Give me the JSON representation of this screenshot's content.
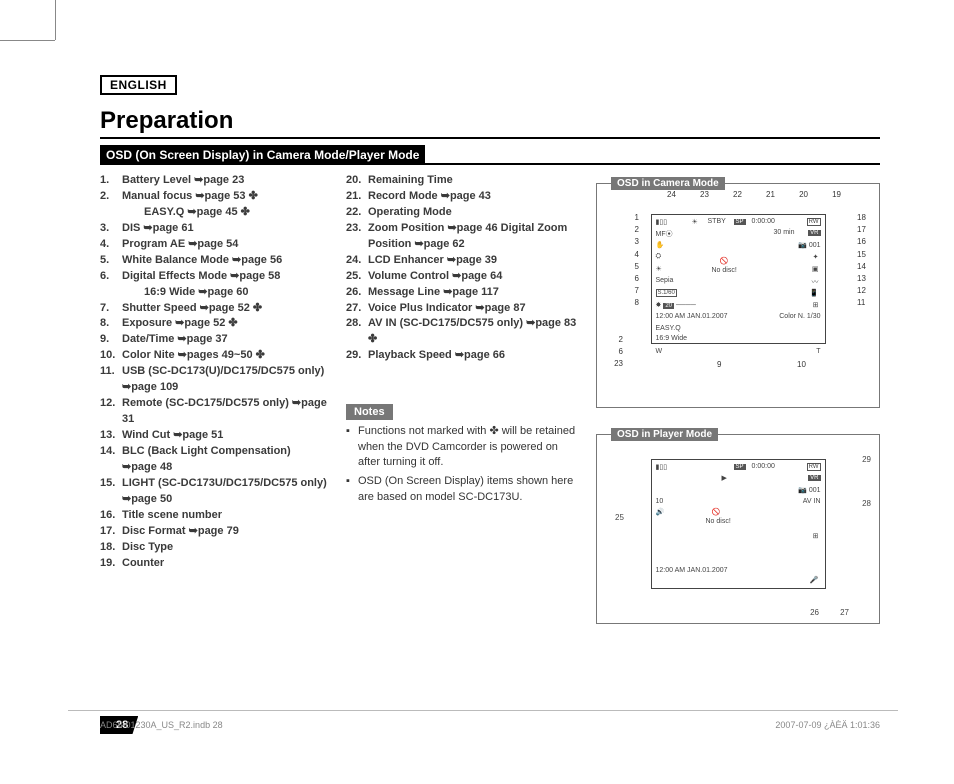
{
  "doc": {
    "language_label": "ENGLISH",
    "title": "Preparation",
    "section_heading": "OSD (On Screen Display) in Camera Mode/Player Mode",
    "page_number": "28",
    "footer_left": "AD68-01230A_US_R2.indb   28",
    "footer_right": "2007-07-09   ¿ÀÈÄ 1:01:36"
  },
  "list_a": [
    {
      "n": "1.",
      "t": "Battery Level ➥page 23"
    },
    {
      "n": "2.",
      "t": "Manual focus ➥page 53 ✤"
    },
    {
      "n": "",
      "t": "EASY.Q ➥page 45 ✤",
      "sub": true
    },
    {
      "n": "3.",
      "t": "DIS ➥page 61"
    },
    {
      "n": "4.",
      "t": "Program AE ➥page 54"
    },
    {
      "n": "5.",
      "t": "White Balance Mode ➥page 56"
    },
    {
      "n": "6.",
      "t": "Digital Effects Mode ➥page 58"
    },
    {
      "n": "",
      "t": "16:9 Wide ➥page 60",
      "sub": true
    },
    {
      "n": "7.",
      "t": "Shutter Speed ➥page 52 ✤"
    },
    {
      "n": "8.",
      "t": "Exposure ➥page 52 ✤"
    },
    {
      "n": "9.",
      "t": "Date/Time ➥page 37"
    },
    {
      "n": "10.",
      "t": "Color Nite ➥pages 49~50 ✤"
    },
    {
      "n": "11.",
      "t": "USB (SC-DC173(U)/DC175/DC575 only) ➥page 109"
    },
    {
      "n": "12.",
      "t": "Remote (SC-DC175/DC575 only) ➥page 31"
    },
    {
      "n": "13.",
      "t": "Wind Cut ➥page 51"
    },
    {
      "n": "14.",
      "t": "BLC (Back Light Compensation) ➥page 48"
    },
    {
      "n": "15.",
      "t": "LIGHT (SC-DC173U/DC175/DC575 only) ➥page 50"
    },
    {
      "n": "16.",
      "t": "Title scene number"
    },
    {
      "n": "17.",
      "t": "Disc Format ➥page 79"
    },
    {
      "n": "18.",
      "t": "Disc Type"
    },
    {
      "n": "19.",
      "t": "Counter"
    }
  ],
  "list_b": [
    {
      "n": "20.",
      "t": "Remaining Time"
    },
    {
      "n": "21.",
      "t": "Record Mode ➥page 43"
    },
    {
      "n": "22.",
      "t": "Operating Mode"
    },
    {
      "n": "23.",
      "t": "Zoom Position ➥page 46 Digital Zoom Position ➥page 62"
    },
    {
      "n": "24.",
      "t": "LCD Enhancer ➥page 39"
    },
    {
      "n": "25.",
      "t": "Volume Control ➥page 64"
    },
    {
      "n": "26.",
      "t": "Message Line ➥page 117"
    },
    {
      "n": "27.",
      "t": "Voice Plus Indicator ➥page 87"
    },
    {
      "n": "28.",
      "t": "AV IN (SC-DC175/DC575 only) ➥page 83 ✤"
    },
    {
      "n": "29.",
      "t": "Playback Speed ➥page 66"
    }
  ],
  "notes_heading": "Notes",
  "notes": [
    "Functions not marked with ✤ will be retained when the DVD Camcorder is powered on after turning it off.",
    "OSD (On Screen Display) items shown here are based on model SC-DC173U."
  ],
  "panel_cam": {
    "title": "OSD in Camera Mode",
    "top_nums": [
      "24",
      "23",
      "22",
      "21",
      "20",
      "19"
    ],
    "left_nums": [
      "1",
      "2",
      "3",
      "4",
      "5",
      "6",
      "7",
      "8"
    ],
    "right_nums": [
      "18",
      "17",
      "16",
      "15",
      "14",
      "13",
      "12",
      "11"
    ],
    "extra_left": [
      "2",
      "6",
      "23"
    ],
    "bottom_nums": [
      "9",
      "10"
    ],
    "screen": {
      "stby": "STBY",
      "sp": "SP",
      "counter": "0:00:00",
      "rw": "RW",
      "remain": "30 min",
      "vr": "VR",
      "scene": "001",
      "nodisc": "No disc!",
      "sepia": "Sepia",
      "shutter": "S.1/60",
      "exp": "20",
      "datetime": "12:00 AM JAN.01.2007",
      "colornite": "Color N. 1/30",
      "easyq": "EASY.Q",
      "wide": "16:9 Wide",
      "w": "W",
      "t": "T"
    }
  },
  "panel_play": {
    "title": "OSD in Player Mode",
    "screen": {
      "sp": "SP",
      "counter": "0:00:00",
      "rw": "RW",
      "vr": "VR",
      "scene": "001",
      "avin": "AV IN",
      "nodisc": "No disc!",
      "datetime": "12:00 AM JAN.01.2007",
      "vol": "10"
    },
    "callouts": {
      "c25": "25",
      "c28": "28",
      "c29": "29",
      "c26": "26",
      "c27": "27"
    }
  }
}
